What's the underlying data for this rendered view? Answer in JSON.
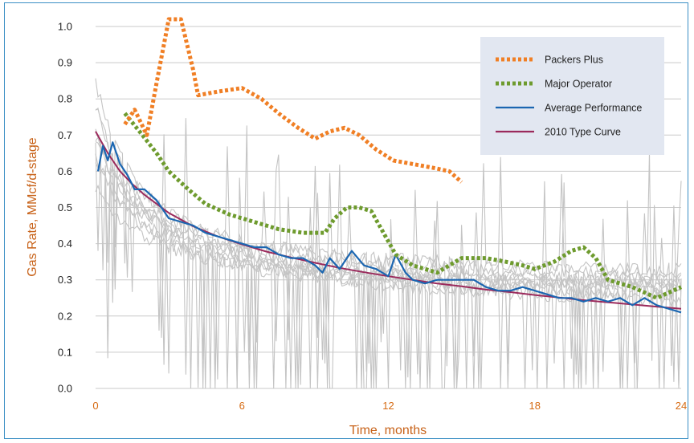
{
  "chart_data": {
    "type": "line",
    "xlabel": "Time, months",
    "ylabel": "Gas Rate, MMcf/d-stage",
    "xlim": [
      0,
      24
    ],
    "ylim": [
      0,
      1.0
    ],
    "xticks": [
      "0",
      "6",
      "12",
      "18",
      "24"
    ],
    "yticks": [
      "0.0",
      "0.1",
      "0.2",
      "0.3",
      "0.4",
      "0.5",
      "0.6",
      "0.7",
      "0.8",
      "0.9",
      "1.0"
    ],
    "grid": "horizontal",
    "legend_position": "top-right",
    "series": [
      {
        "name": "Packers Plus",
        "style": "dotted-thick",
        "color": "#f07f25",
        "x": [
          1.2,
          1.6,
          2.1,
          2.6,
          3.0,
          3.5,
          4.0,
          4.2,
          5.0,
          6.0,
          6.8,
          7.5,
          8.3,
          9.0,
          9.6,
          10.2,
          10.8,
          11.5,
          12.2,
          13.0,
          13.8,
          14.5,
          15.0
        ],
        "y": [
          0.73,
          0.77,
          0.7,
          0.88,
          1.02,
          1.02,
          0.88,
          0.81,
          0.82,
          0.83,
          0.8,
          0.76,
          0.72,
          0.69,
          0.71,
          0.72,
          0.7,
          0.66,
          0.63,
          0.62,
          0.61,
          0.6,
          0.57
        ]
      },
      {
        "name": "Major Operator",
        "style": "dotted-thick",
        "color": "#6e9b2e",
        "x": [
          1.2,
          1.8,
          2.5,
          3.0,
          3.8,
          4.5,
          5.5,
          6.5,
          7.5,
          8.5,
          9.4,
          9.8,
          10.3,
          10.8,
          11.3,
          11.8,
          12.3,
          13.0,
          14.0,
          15.0,
          16.0,
          16.8,
          17.5,
          18.0,
          18.8,
          19.5,
          20.0,
          20.5,
          21.0,
          22.0,
          23.0,
          24.0
        ],
        "y": [
          0.76,
          0.71,
          0.65,
          0.6,
          0.55,
          0.51,
          0.48,
          0.46,
          0.44,
          0.43,
          0.43,
          0.47,
          0.5,
          0.5,
          0.49,
          0.43,
          0.37,
          0.34,
          0.32,
          0.36,
          0.36,
          0.35,
          0.34,
          0.33,
          0.35,
          0.38,
          0.39,
          0.36,
          0.3,
          0.28,
          0.25,
          0.28
        ]
      },
      {
        "name": "Average Performance",
        "style": "solid",
        "color": "#1b66b1",
        "x": [
          0.1,
          0.3,
          0.5,
          0.7,
          1.0,
          1.3,
          1.6,
          2.0,
          2.5,
          3.0,
          3.5,
          4.0,
          4.5,
          5.0,
          5.5,
          6.0,
          6.5,
          7.0,
          7.5,
          8.0,
          8.5,
          9.0,
          9.3,
          9.6,
          10.0,
          10.5,
          11.0,
          11.5,
          12.0,
          12.3,
          12.7,
          13.0,
          13.5,
          14.0,
          14.5,
          15.0,
          15.5,
          16.0,
          16.5,
          17.0,
          17.5,
          18.0,
          18.5,
          19.0,
          19.5,
          20.0,
          20.5,
          21.0,
          21.5,
          22.0,
          22.5,
          23.0,
          23.5,
          24.0
        ],
        "y": [
          0.6,
          0.67,
          0.63,
          0.68,
          0.62,
          0.59,
          0.55,
          0.55,
          0.52,
          0.47,
          0.46,
          0.45,
          0.43,
          0.42,
          0.41,
          0.4,
          0.39,
          0.39,
          0.37,
          0.36,
          0.36,
          0.34,
          0.32,
          0.36,
          0.33,
          0.38,
          0.34,
          0.33,
          0.31,
          0.37,
          0.32,
          0.3,
          0.29,
          0.3,
          0.3,
          0.3,
          0.3,
          0.28,
          0.27,
          0.27,
          0.28,
          0.27,
          0.26,
          0.25,
          0.25,
          0.24,
          0.25,
          0.24,
          0.25,
          0.23,
          0.25,
          0.23,
          0.22,
          0.21
        ]
      },
      {
        "name": "2010 Type Curve",
        "style": "solid",
        "color": "#9b2a5c",
        "x": [
          0.0,
          0.5,
          1.0,
          1.5,
          2.0,
          3.0,
          4.0,
          5.0,
          6.0,
          7.0,
          8.0,
          9.0,
          10.0,
          11.0,
          12.0,
          13.0,
          14.0,
          15.0,
          16.0,
          17.0,
          18.0,
          19.0,
          20.0,
          21.0,
          22.0,
          23.0,
          24.0
        ],
        "y": [
          0.71,
          0.65,
          0.6,
          0.565,
          0.535,
          0.485,
          0.448,
          0.42,
          0.398,
          0.378,
          0.362,
          0.347,
          0.333,
          0.321,
          0.31,
          0.3,
          0.29,
          0.282,
          0.273,
          0.266,
          0.258,
          0.251,
          0.244,
          0.238,
          0.232,
          0.226,
          0.22
        ]
      }
    ],
    "colors": {
      "individual_wells": "#c4c4c4",
      "grid": "#c9c9c9",
      "legend_bg": "#e2e7f1",
      "frame": "#3a8fc4"
    }
  }
}
